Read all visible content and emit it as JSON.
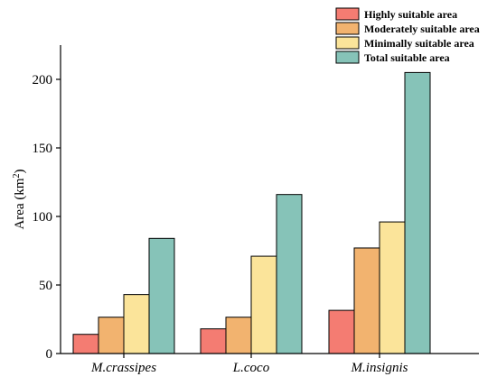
{
  "chart_data": {
    "type": "bar",
    "title": "",
    "xlabel": "",
    "ylabel": "Area (km",
    "ylabel_sup": "2",
    "ylabel_close": ")",
    "ylim": [
      0,
      225
    ],
    "yticks": [
      0,
      50,
      100,
      150,
      200
    ],
    "grid": false,
    "legend_position": "top-right",
    "categories": [
      "M.crassipes",
      "L.coco",
      "M.insignis"
    ],
    "series": [
      {
        "name": "Highly suitable area",
        "color": "#F47C72",
        "values": [
          14,
          18,
          31.5
        ]
      },
      {
        "name": "Moderately suitable area",
        "color": "#F2B36F",
        "values": [
          26.5,
          26.5,
          77
        ]
      },
      {
        "name": "Minimally suitable area",
        "color": "#FBE49A",
        "values": [
          43,
          71,
          96
        ]
      },
      {
        "name": "Total suitable area",
        "color": "#86C3B8",
        "values": [
          84,
          116,
          205
        ]
      }
    ]
  }
}
